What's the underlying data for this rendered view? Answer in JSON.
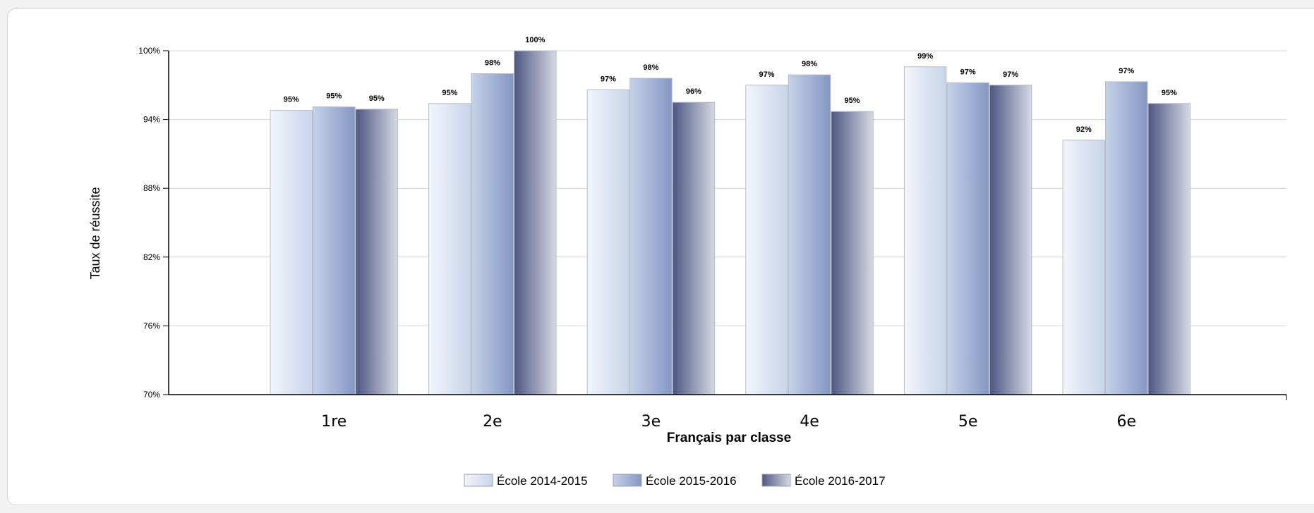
{
  "chart_data": {
    "type": "bar",
    "title": "",
    "xlabel": "Français par classe",
    "ylabel": "Taux de réussite",
    "ylim": [
      70,
      100
    ],
    "yticks": [
      "70%",
      "76%",
      "82%",
      "88%",
      "94%",
      "100%"
    ],
    "ytick_values": [
      70,
      76,
      82,
      88,
      94,
      100
    ],
    "categories": [
      "1re",
      "2e",
      "3e",
      "4e",
      "5e",
      "6e"
    ],
    "series": [
      {
        "name": "École 2014-2015",
        "values": [
          94.8,
          95.4,
          96.6,
          97.0,
          98.6,
          92.2
        ],
        "labels": [
          "95%",
          "95%",
          "97%",
          "97%",
          "99%",
          "92%"
        ],
        "color_light": "#f2f5fc",
        "color_dark": "#c9d4ea"
      },
      {
        "name": "École 2015-2016",
        "values": [
          95.1,
          98.0,
          97.6,
          97.9,
          97.2,
          97.3
        ],
        "labels": [
          "95%",
          "98%",
          "98%",
          "98%",
          "97%",
          "97%"
        ],
        "color_light": "#c5d2ea",
        "color_dark": "#8597c2"
      },
      {
        "name": "École 2016-2017",
        "values": [
          94.9,
          100,
          95.5,
          94.7,
          97.0,
          95.4
        ],
        "labels": [
          "95%",
          "100%",
          "96%",
          "95%",
          "97%",
          "95%"
        ],
        "color_light": "#4e5683",
        "color_dark": "#d6d9e3"
      }
    ],
    "grid": true,
    "legend_position": "bottom-center"
  }
}
